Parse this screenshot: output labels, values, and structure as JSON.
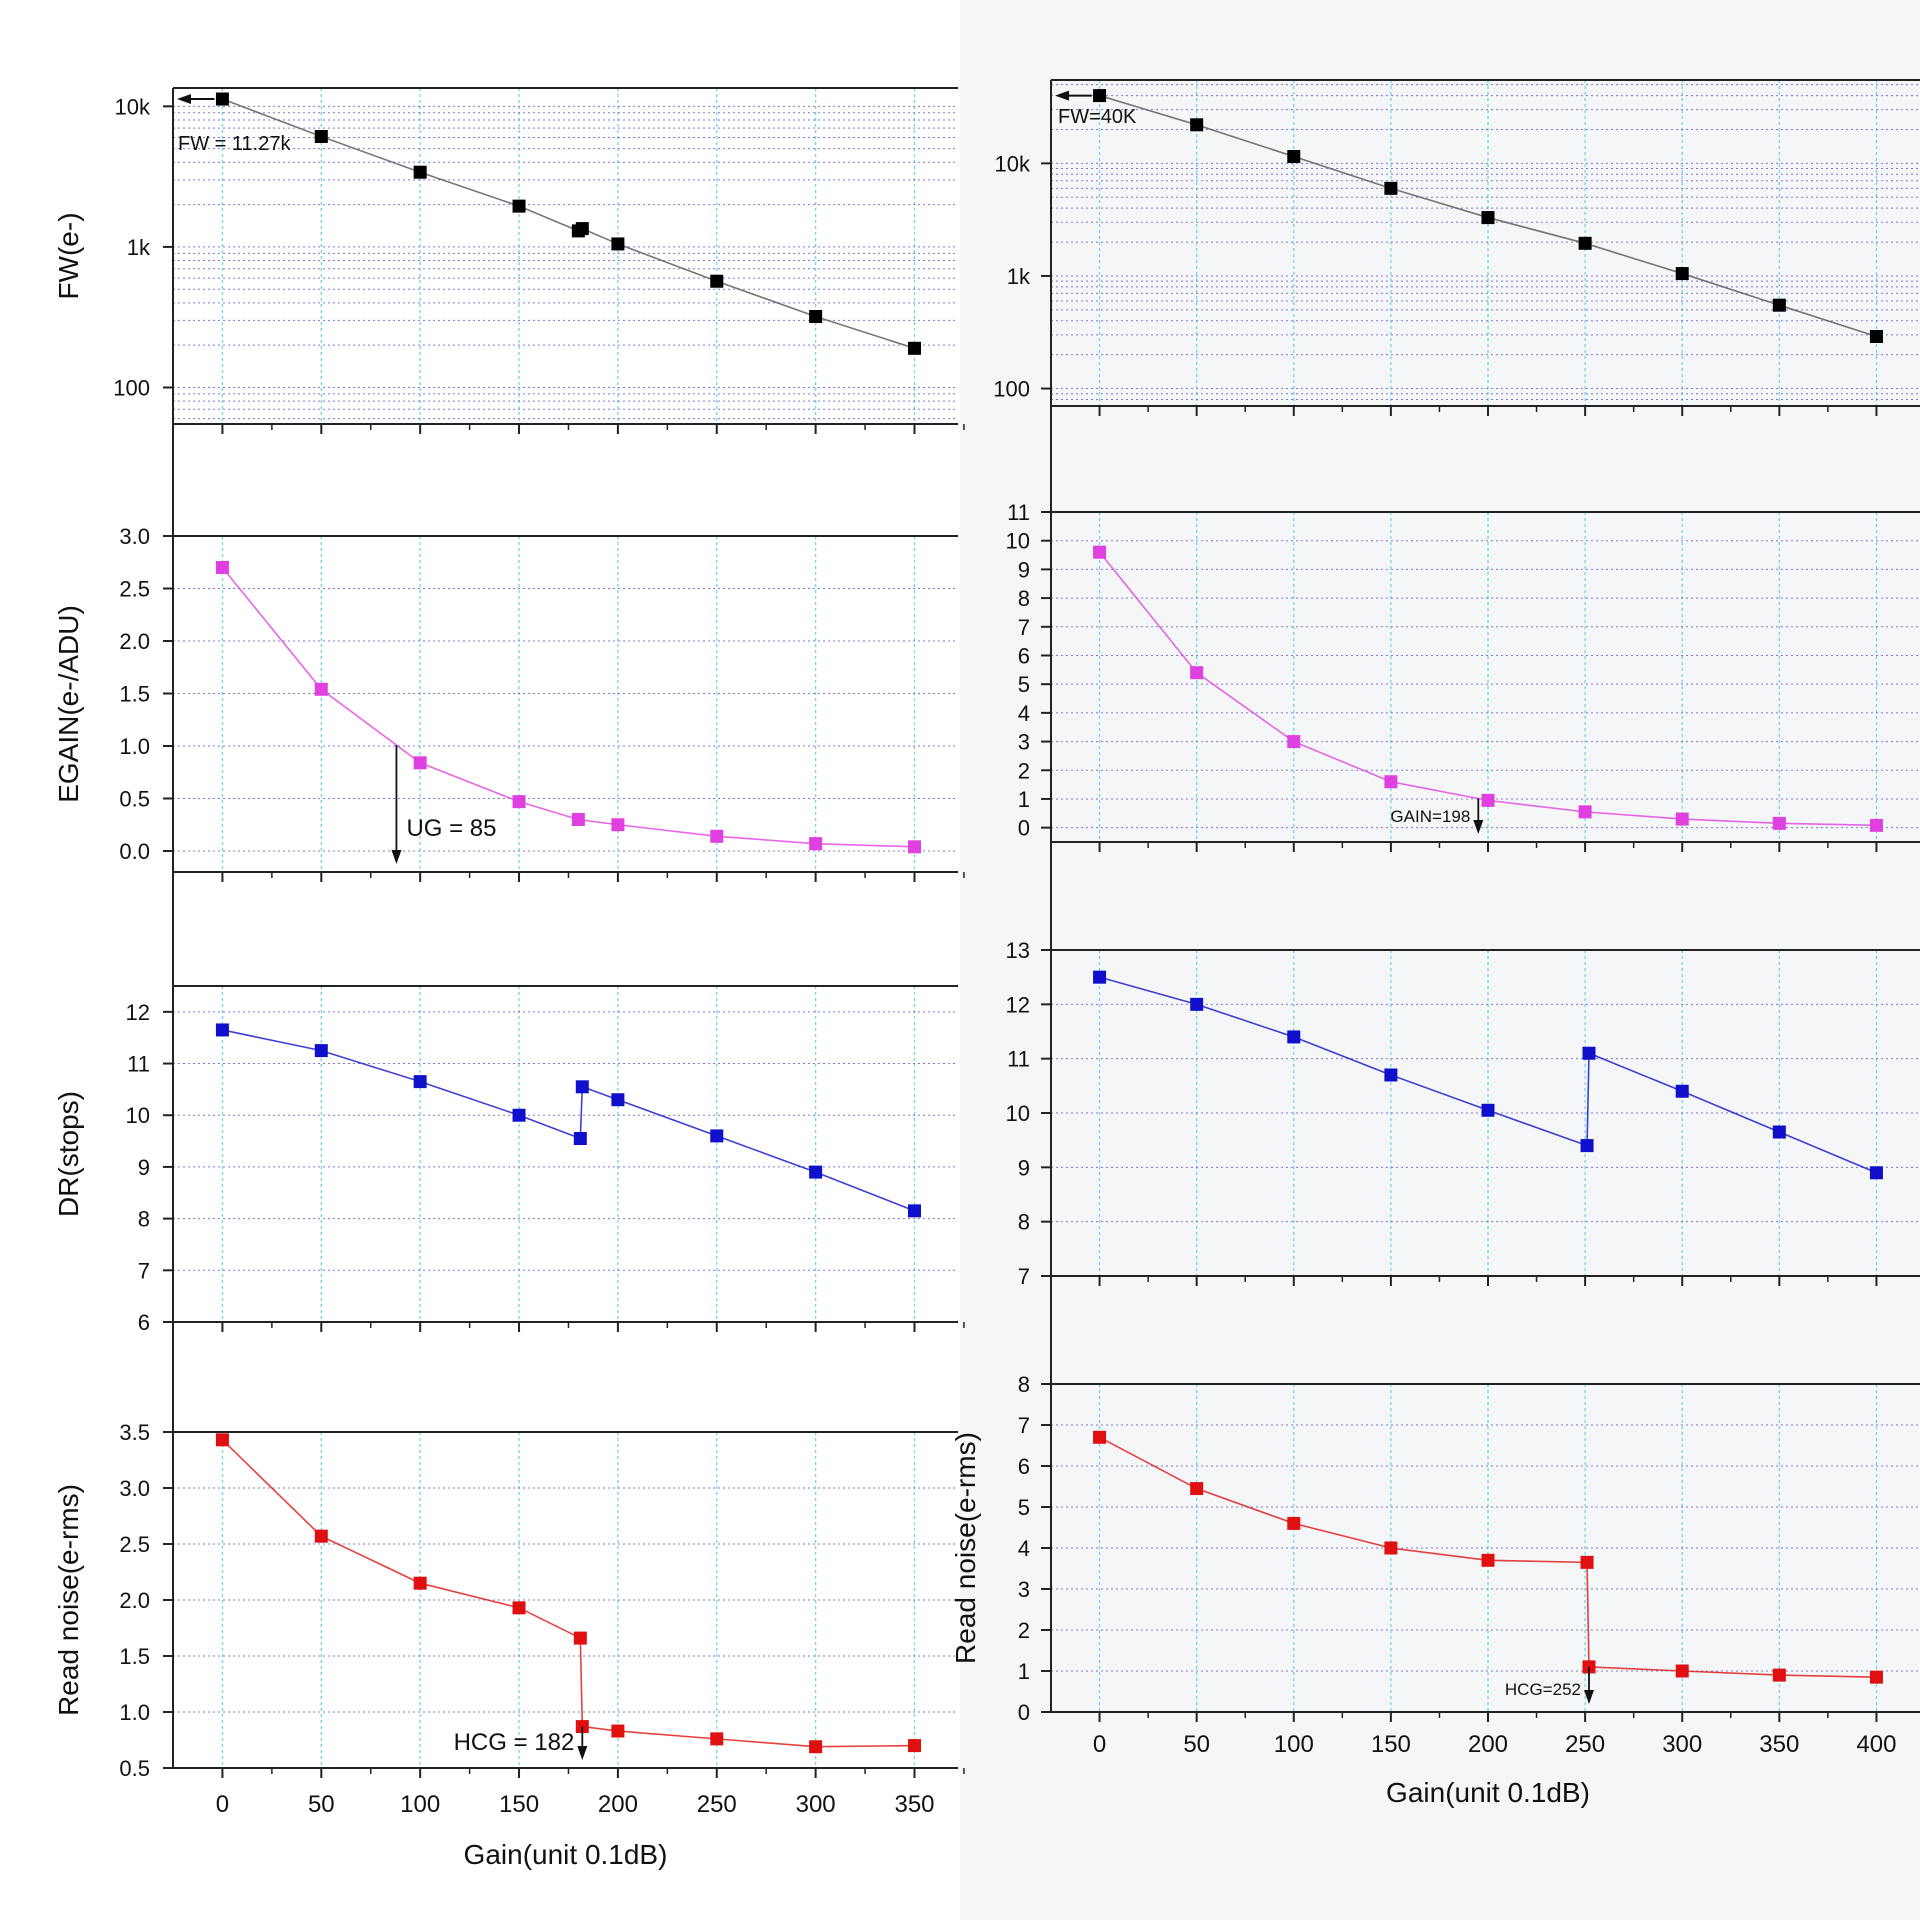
{
  "chart_data": [
    {
      "type": "line",
      "panel": "left",
      "ylabel": "FW(e-)",
      "xlabel": "",
      "scale": "log",
      "ylim": [
        55,
        13500
      ],
      "yticks": [
        100,
        1000,
        10000
      ],
      "yticklabels": [
        "100",
        "1k",
        "10k"
      ],
      "x": [
        0,
        50,
        100,
        150,
        180,
        182,
        200,
        250,
        300,
        350
      ],
      "series": [
        {
          "color": "#000000",
          "values": [
            11270,
            6100,
            3400,
            1950,
            1300,
            1350,
            1050,
            570,
            320,
            190
          ]
        }
      ],
      "annotations": [
        {
          "text": "FW = 11.27k",
          "arrow": "left"
        }
      ]
    },
    {
      "type": "line",
      "panel": "left",
      "ylabel": "EGAIN(e-/ADU)",
      "xlabel": "",
      "ylim": [
        -0.2,
        3.0
      ],
      "yticks": [
        0,
        0.5,
        1,
        1.5,
        2,
        2.5,
        3
      ],
      "yticklabels": [
        "0.0",
        "0.5",
        "1.0",
        "1.5",
        "2.0",
        "2.5",
        "3.0"
      ],
      "x": [
        0,
        50,
        100,
        150,
        180,
        200,
        250,
        300,
        350
      ],
      "series": [
        {
          "color": "#e040e0",
          "values": [
            2.7,
            1.54,
            0.84,
            0.47,
            0.3,
            0.25,
            0.14,
            0.07,
            0.04
          ]
        }
      ],
      "annotations": [
        {
          "text": "UG = 85",
          "x": 88
        }
      ]
    },
    {
      "type": "line",
      "panel": "left",
      "ylabel": "DR(stops)",
      "xlabel": "",
      "ylim": [
        6,
        12.5
      ],
      "yticks": [
        6,
        7,
        8,
        9,
        10,
        11,
        12
      ],
      "yticklabels": [
        "6",
        "7",
        "8",
        "9",
        "10",
        "11",
        "12"
      ],
      "x": [
        0,
        50,
        100,
        150,
        181,
        182,
        200,
        250,
        300,
        350
      ],
      "series": [
        {
          "color": "#1010cc",
          "values": [
            11.65,
            11.25,
            10.65,
            10.0,
            9.55,
            10.55,
            10.3,
            9.6,
            8.9,
            8.15
          ]
        }
      ]
    },
    {
      "type": "line",
      "panel": "left",
      "ylabel": "Read noise(e-rms)",
      "xlabel": "Gain(unit 0.1dB)",
      "ylim": [
        0.5,
        3.5
      ],
      "yticks": [
        0.5,
        1,
        1.5,
        2,
        2.5,
        3,
        3.5
      ],
      "yticklabels": [
        "0.5",
        "1.0",
        "1.5",
        "2.0",
        "2.5",
        "3.0",
        "3.5"
      ],
      "xticks": [
        0,
        50,
        100,
        150,
        200,
        250,
        300,
        350
      ],
      "x": [
        0,
        50,
        100,
        150,
        181,
        182,
        200,
        250,
        300,
        350
      ],
      "series": [
        {
          "color": "#e01010",
          "values": [
            3.43,
            2.57,
            2.15,
            1.93,
            1.66,
            0.87,
            0.83,
            0.76,
            0.69,
            0.7
          ]
        }
      ],
      "annotations": [
        {
          "text": "HCG = 182",
          "x": 182
        }
      ]
    },
    {
      "type": "line",
      "panel": "right",
      "ylabel": "",
      "xlabel": "",
      "scale": "log",
      "ylim": [
        70,
        55000
      ],
      "yticks": [
        100,
        1000,
        10000
      ],
      "yticklabels": [
        "100",
        "1k",
        "10k"
      ],
      "x": [
        0,
        50,
        100,
        150,
        200,
        250,
        300,
        350,
        400
      ],
      "series": [
        {
          "color": "#000000",
          "values": [
            40000,
            22000,
            11500,
            6000,
            3300,
            1950,
            1050,
            550,
            290
          ]
        }
      ],
      "annotations": [
        {
          "text": "FW=40K",
          "arrow": "left"
        }
      ]
    },
    {
      "type": "line",
      "panel": "right",
      "ylabel": "",
      "xlabel": "",
      "ylim": [
        -0.5,
        11
      ],
      "yticks": [
        0,
        1,
        2,
        3,
        4,
        5,
        6,
        7,
        8,
        9,
        10,
        11
      ],
      "yticklabels": [
        "0",
        "1",
        "2",
        "3",
        "4",
        "5",
        "6",
        "7",
        "8",
        "9",
        "10",
        "11"
      ],
      "x": [
        0,
        50,
        100,
        150,
        200,
        250,
        300,
        350,
        400
      ],
      "series": [
        {
          "color": "#e040e0",
          "values": [
            9.6,
            5.4,
            3.0,
            1.6,
            0.95,
            0.55,
            0.3,
            0.15,
            0.08
          ]
        }
      ],
      "annotations": [
        {
          "text": "GAIN=198",
          "x": 195
        }
      ]
    },
    {
      "type": "line",
      "panel": "right",
      "ylabel": "",
      "xlabel": "",
      "ylim": [
        7,
        13
      ],
      "yticks": [
        7,
        8,
        9,
        10,
        11,
        12,
        13
      ],
      "yticklabels": [
        "7",
        "8",
        "9",
        "10",
        "11",
        "12",
        "13"
      ],
      "x": [
        0,
        50,
        100,
        150,
        200,
        251,
        252,
        300,
        350,
        400
      ],
      "series": [
        {
          "color": "#1010cc",
          "values": [
            12.5,
            12.0,
            11.4,
            10.7,
            10.05,
            9.4,
            11.1,
            10.4,
            9.65,
            8.9
          ]
        }
      ]
    },
    {
      "type": "line",
      "panel": "right",
      "ylabel": "Read noise(e-rms)",
      "xlabel": "Gain(unit 0.1dB)",
      "ylim": [
        0,
        8
      ],
      "yticks": [
        0,
        1,
        2,
        3,
        4,
        5,
        6,
        7,
        8
      ],
      "yticklabels": [
        "0",
        "1",
        "2",
        "3",
        "4",
        "5",
        "6",
        "7",
        "8"
      ],
      "xticks": [
        0,
        50,
        100,
        150,
        200,
        250,
        300,
        350,
        400
      ],
      "x": [
        0,
        50,
        100,
        150,
        200,
        251,
        252,
        300,
        350,
        400
      ],
      "series": [
        {
          "color": "#e01010",
          "values": [
            6.7,
            5.45,
            4.6,
            4.0,
            3.7,
            3.65,
            1.1,
            1.0,
            0.9,
            0.85
          ]
        }
      ],
      "annotations": [
        {
          "text": "HCG=252",
          "x": 252
        }
      ]
    }
  ]
}
